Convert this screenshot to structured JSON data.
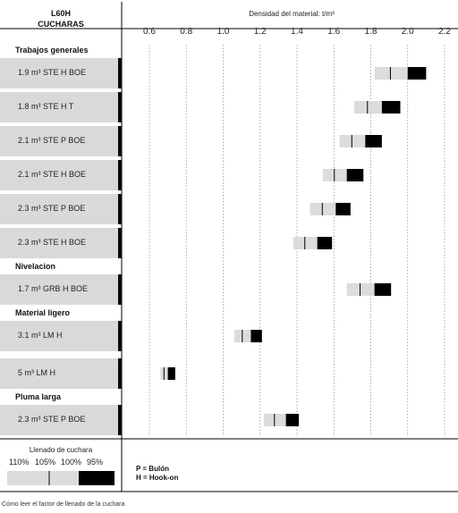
{
  "header": {
    "line1": "L60H",
    "line2": "CUCHARAS"
  },
  "footer": "Cómo leer el factor de llenado de la cuchara",
  "legend": {
    "title": "Llenado de cuchara",
    "pcts": [
      "110%",
      "105%",
      "100%",
      "95%"
    ],
    "keys": [
      "P = Bulón",
      "H = Hook-on"
    ]
  },
  "chart_data": {
    "type": "bar",
    "title": "",
    "xlabel": "Densidad del material: t/m³",
    "xlim": [
      0.4,
      2.2
    ],
    "xticks": [
      0.6,
      0.8,
      1.0,
      1.2,
      1.4,
      1.6,
      1.8,
      2.0,
      2.2
    ],
    "xtick_labels": [
      "0.6",
      "0.8",
      "1.0",
      "1.2",
      "1.4",
      "1.6",
      "1.8",
      "2.0",
      "2.2"
    ],
    "grid": true,
    "groups": [
      {
        "name": "Trabajos generales",
        "rows": [
          {
            "label": "1.9 m³ STE H BOE",
            "fill110": 1.82,
            "fill100": 2.0,
            "fill95": 2.1
          },
          {
            "label": "1.8 m³ STE H T",
            "fill110": 1.71,
            "fill100": 1.86,
            "fill95": 1.96
          },
          {
            "label": "2.1 m³ STE P BOE",
            "fill110": 1.63,
            "fill100": 1.77,
            "fill95": 1.86
          },
          {
            "label": "2.1 m³ STE H BOE",
            "fill110": 1.54,
            "fill100": 1.67,
            "fill95": 1.76
          },
          {
            "label": "2.3 m³ STE P BOE",
            "fill110": 1.47,
            "fill100": 1.61,
            "fill95": 1.69
          },
          {
            "label": "2.3 m³ STE H BOE",
            "fill110": 1.38,
            "fill100": 1.51,
            "fill95": 1.59
          }
        ]
      },
      {
        "name": "Nivelacion",
        "rows": [
          {
            "label": "1.7 m³ GRB H BOE",
            "fill110": 1.67,
            "fill100": 1.82,
            "fill95": 1.91
          }
        ]
      },
      {
        "name": "Material ligero",
        "rows": [
          {
            "label": "3.1 m³ LM H",
            "fill110": 1.06,
            "fill100": 1.15,
            "fill95": 1.21
          }
        ]
      },
      {
        "name": "",
        "rows": [
          {
            "label": "5 m³ LM H",
            "fill110": 0.66,
            "fill100": 0.7,
            "fill95": 0.74
          }
        ]
      },
      {
        "name": "Pluma larga",
        "rows": [
          {
            "label": "2.3 m³ STE P BOE",
            "fill110": 1.22,
            "fill100": 1.34,
            "fill95": 1.41
          }
        ]
      }
    ]
  }
}
